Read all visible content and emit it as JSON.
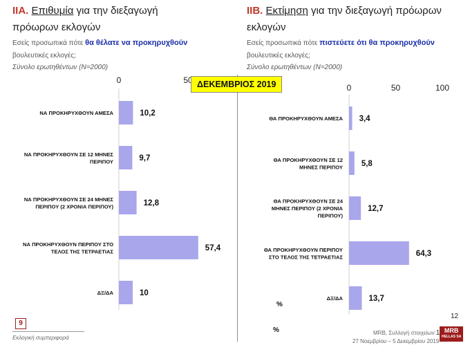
{
  "left": {
    "code": "ΙΙΑ.",
    "title_underlined": "Επιθυμία",
    "title_rest": " για την διεξαγωγή",
    "title_line2": "πρόωρων εκλογών",
    "question_pre": "Εσείς προσωπικά πότε ",
    "question_highlight": "θα θέλατε να προκηρυχθούν",
    "question_line2": "βουλευτικές εκλογές;",
    "base": "Σύνολο ερωτηθέντων (N=2000)"
  },
  "right": {
    "code": "ΙΙΒ.",
    "title_underlined": "Εκτίμηση",
    "title_rest": " για την διεξαγωγή πρόωρων",
    "title_line2": "εκλογών",
    "question_pre": "Εσείς προσωπικά πότε ",
    "question_highlight": "πιστεύετε ότι θα προκηρυχθούν",
    "question_line2": "βουλευτικές εκλογές;",
    "base": "Σύνολο ερωτηθέντων (N=2000)"
  },
  "badge": "ΔΕΚΕΜΒΡΙΟΣ 2019",
  "percent_1": "%",
  "percent_2": "%",
  "footer": {
    "page_number": "9",
    "section": "Εκλογική συμπεριφορά",
    "right_page": "12",
    "source": "MRB, Συλλογή στοιχείων:",
    "source_page": "12",
    "dates": "27 Νοεμβρίου – 5 Δεκεμβρίου 2019",
    "logo_line1": "MRB",
    "logo_line2": "HELLAS SA"
  },
  "chart_data": [
    {
      "type": "bar",
      "orientation": "horizontal",
      "ticks": [
        "0",
        "50"
      ],
      "xlim": [
        0,
        100
      ],
      "bar_color": "#a9a6ec",
      "categories": [
        "ΝΑ ΠΡΟΚΗΡΥΧΘΟΥΝ ΑΜΕΣΑ",
        "ΝΑ ΠΡΟΚΗΡΥΧΘΟΥΝ ΣΕ 12 ΜΗΝΕΣ ΠΕΡΙΠΟΥ",
        "ΝΑ ΠΡΟΚΗΡΥΧΘΟΥΝ ΣΕ 24 ΜΗΝΕΣ ΠΕΡΙΠΟΥ (2 ΧΡΟΝΙΑ ΠΕΡΙΠΟΥ)",
        "ΝΑ ΠΡΟΚΗΡΥΧΘΟΥΝ ΠΕΡΙΠΟΥ ΣΤΟ ΤΕΛΟΣ ΤΗΣ ΤΕΤΡΑΕΤΙΑΣ",
        "ΔΞ/ΔΑ"
      ],
      "category_lines": [
        [
          "ΝΑ ΠΡΟΚΗΡΥΧΘΟΥΝ ΑΜΕΣΑ"
        ],
        [
          "ΝΑ ΠΡΟΚΗΡΥΧΘΟΥΝ ΣΕ 12 ΜΗΝΕΣ",
          "ΠΕΡΙΠΟΥ"
        ],
        [
          "ΝΑ ΠΡΟΚΗΡΥΧΘΟΥΝ ΣΕ 24 ΜΗΝΕΣ",
          "ΠΕΡΙΠΟΥ (2 ΧΡΟΝΙΑ ΠΕΡΙΠΟΥ)"
        ],
        [
          "ΝΑ ΠΡΟΚΗΡΥΧΘΟΥΝ ΠΕΡΙΠΟΥ ΣΤΟ",
          "ΤΕΛΟΣ ΤΗΣ ΤΕΤΡΑΕΤΙΑΣ"
        ],
        [
          "ΔΞ/ΔΑ"
        ]
      ],
      "values": [
        10.2,
        9.7,
        12.8,
        57.4,
        10
      ],
      "value_labels": [
        "10,2",
        "9,7",
        "12,8",
        "57,4",
        "10"
      ]
    },
    {
      "type": "bar",
      "orientation": "horizontal",
      "ticks": [
        "0",
        "50",
        "100"
      ],
      "xlim": [
        0,
        100
      ],
      "bar_color": "#a9a6ec",
      "categories": [
        "ΘΑ ΠΡΟΚΗΡΥΧΘΟΥΝ ΑΜΕΣΑ",
        "ΘΑ ΠΡΟΚΗΡΥΧΘΟΥΝ ΣΕ 12 ΜΗΝΕΣ ΠΕΡΙΠΟΥ",
        "ΘΑ ΠΡΟΚΗΡΥΧΘΟΥΝ ΣΕ 24 ΜΗΝΕΣ ΠΕΡΙΠΟΥ (2 ΧΡΟΝΙΑ ΠΕΡΙΠΟΥ)",
        "ΘΑ ΠΡΟΚΗΡΥΧΘΟΥΝ ΠΕΡΙΠΟΥ ΣΤΟ ΤΕΛΟΣ ΤΗΣ ΤΕΤΡΑΕΤΙΑΣ",
        "ΔΞ/ΔΑ"
      ],
      "category_lines": [
        [
          "ΘΑ ΠΡΟΚΗΡΥΧΘΟΥΝ ΑΜΕΣΑ"
        ],
        [
          "ΘΑ ΠΡΟΚΗΡΥΧΘΟΥΝ ΣΕ 12",
          "ΜΗΝΕΣ ΠΕΡΙΠΟΥ"
        ],
        [
          "ΘΑ ΠΡΟΚΗΡΥΧΘΟΥΝ ΣΕ 24",
          "ΜΗΝΕΣ ΠΕΡΙΠΟΥ (2 ΧΡΟΝΙΑ",
          "ΠΕΡΙΠΟΥ)"
        ],
        [
          "ΘΑ ΠΡΟΚΗΡΥΧΘΟΥΝ ΠΕΡΙΠΟΥ",
          "ΣΤΟ ΤΕΛΟΣ ΤΗΣ ΤΕΤΡΑΕΤΙΑΣ"
        ],
        [
          "ΔΞ/ΔΑ"
        ]
      ],
      "values": [
        3.4,
        5.8,
        12.7,
        64.3,
        13.7
      ],
      "value_labels": [
        "3,4",
        "5,8",
        "12,7",
        "64,3",
        "13,7"
      ]
    }
  ]
}
